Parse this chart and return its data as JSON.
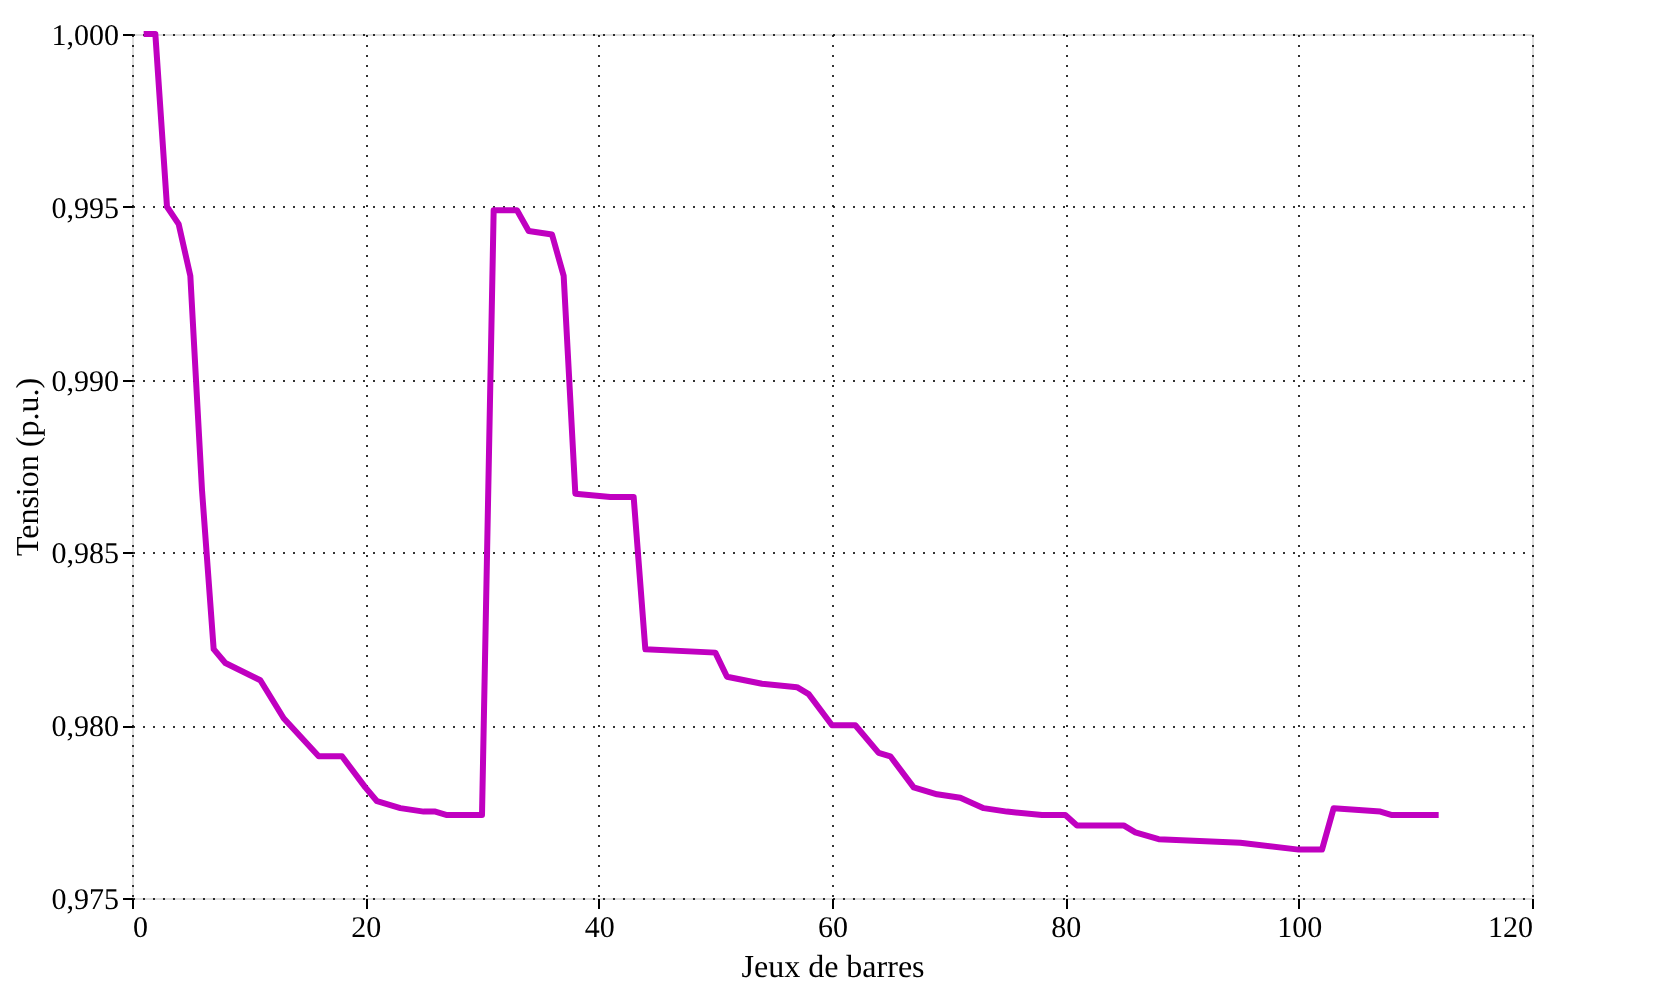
{
  "chart_data": {
    "type": "line",
    "xlabel": "Jeux de barres",
    "ylabel": "Tension (p.u.)",
    "xlim": [
      0,
      120
    ],
    "xticks": [
      0,
      20,
      40,
      60,
      80,
      100,
      120
    ],
    "ylim": [
      0.975,
      1.0
    ],
    "yticks": [
      {
        "value": 0.975,
        "label": "0,975"
      },
      {
        "value": 0.98,
        "label": "0,980"
      },
      {
        "value": 0.985,
        "label": "0,985"
      },
      {
        "value": 0.99,
        "label": "0,990"
      },
      {
        "value": 0.995,
        "label": "0,995"
      },
      {
        "value": 1.0,
        "label": "1,000"
      }
    ],
    "grid": true,
    "marker": "none",
    "line_style": "solid",
    "series": [
      {
        "color": "#c000c0",
        "x": [
          1,
          2,
          3,
          4,
          5,
          6,
          7,
          8,
          11,
          13,
          16,
          18,
          20,
          21,
          23,
          25,
          26,
          27,
          30,
          31,
          33,
          34,
          36,
          37,
          38,
          41,
          43,
          44,
          50,
          51,
          54,
          57,
          58,
          60,
          62,
          64,
          65,
          67,
          69,
          71,
          73,
          75,
          78,
          80,
          81,
          85,
          86,
          88,
          95,
          100,
          102,
          103,
          107,
          108,
          112
        ],
        "values": [
          1.0,
          1.0,
          0.995,
          0.9945,
          0.993,
          0.9868,
          0.9822,
          0.9818,
          0.9813,
          0.9802,
          0.9791,
          0.9791,
          0.9782,
          0.9778,
          0.9776,
          0.9775,
          0.9775,
          0.9774,
          0.9774,
          0.9949,
          0.9949,
          0.9943,
          0.9942,
          0.993,
          0.9867,
          0.9866,
          0.9866,
          0.9822,
          0.9821,
          0.9814,
          0.9812,
          0.9811,
          0.9809,
          0.98,
          0.98,
          0.9792,
          0.9791,
          0.9782,
          0.978,
          0.9779,
          0.9776,
          0.9775,
          0.9774,
          0.9774,
          0.9771,
          0.9771,
          0.9769,
          0.9767,
          0.9766,
          0.9764,
          0.9764,
          0.9776,
          0.9775,
          0.9774,
          0.9774
        ]
      }
    ]
  }
}
